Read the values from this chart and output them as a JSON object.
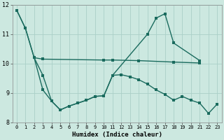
{
  "xlabel": "Humidex (Indice chaleur)",
  "background_color": "#cce8e0",
  "grid_color": "#aad0c8",
  "line_color": "#1a6b5e",
  "xlim": [
    -0.5,
    23.5
  ],
  "ylim": [
    8,
    12
  ],
  "yticks": [
    8,
    9,
    10,
    11,
    12
  ],
  "xticks": [
    0,
    1,
    2,
    3,
    4,
    5,
    6,
    7,
    8,
    9,
    10,
    11,
    12,
    13,
    14,
    15,
    16,
    17,
    18,
    19,
    20,
    21,
    22,
    23
  ],
  "line1_x": [
    0,
    1,
    2,
    3,
    4,
    5,
    6,
    7,
    8,
    9,
    10,
    11,
    15,
    16,
    17,
    18,
    21
  ],
  "line1_y": [
    11.82,
    11.2,
    10.2,
    9.6,
    8.72,
    8.42,
    8.55,
    8.65,
    8.75,
    8.88,
    8.9,
    9.6,
    11.0,
    11.55,
    11.7,
    10.7,
    10.1
  ],
  "line2_x": [
    2,
    3,
    10,
    11,
    14,
    18,
    21
  ],
  "line2_y": [
    10.2,
    10.15,
    10.12,
    10.12,
    10.1,
    10.05,
    10.02
  ],
  "line3_x": [
    0,
    1,
    2,
    3,
    4,
    5,
    6,
    7,
    8,
    9,
    10,
    11,
    12,
    13,
    14,
    15,
    16,
    17,
    18,
    19,
    20,
    21,
    22,
    23
  ],
  "line3_y": [
    11.82,
    11.2,
    10.2,
    9.1,
    8.72,
    8.42,
    8.55,
    8.65,
    8.75,
    8.88,
    8.9,
    9.6,
    9.62,
    9.55,
    9.45,
    9.3,
    9.1,
    8.95,
    8.75,
    8.88,
    8.75,
    8.65,
    8.3,
    8.62
  ],
  "linewidth": 1.0,
  "markersize": 2.5
}
